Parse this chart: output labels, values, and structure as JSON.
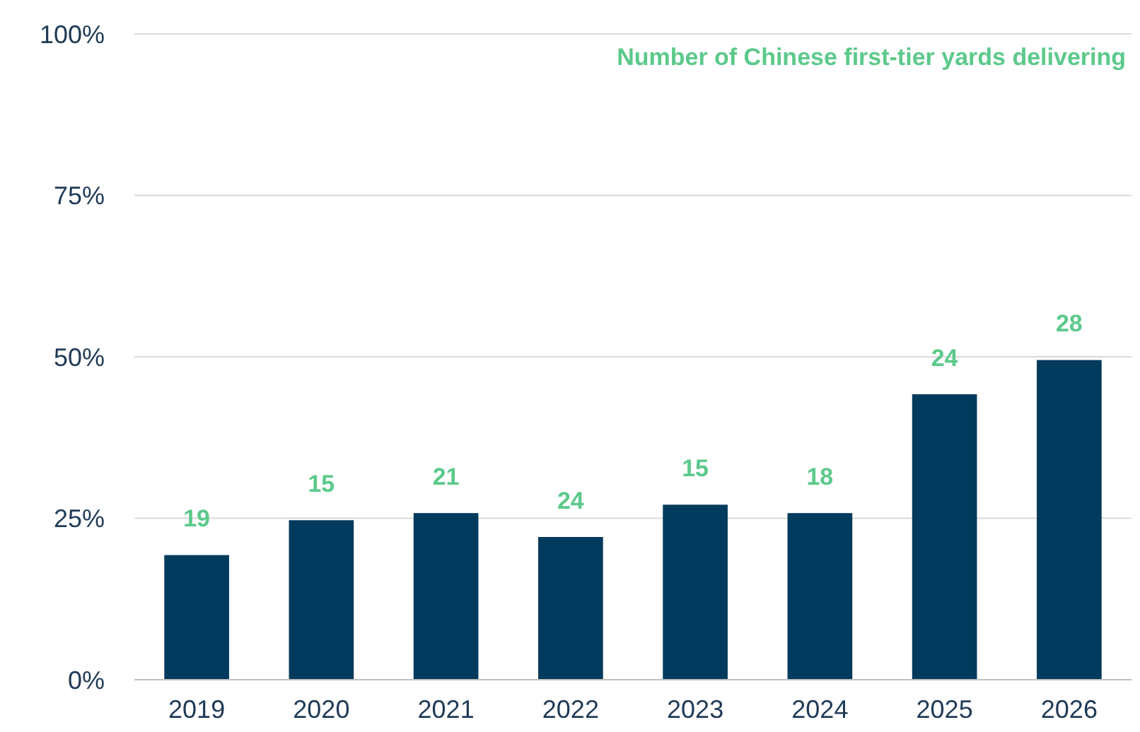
{
  "chart_data": {
    "type": "bar",
    "categories": [
      "2019",
      "2020",
      "2021",
      "2022",
      "2023",
      "2024",
      "2025",
      "2026"
    ],
    "values": [
      19.3,
      24.7,
      25.8,
      22.1,
      27.1,
      25.8,
      44.2,
      49.5
    ],
    "color": "#003a5c",
    "ylim": [
      0,
      100
    ],
    "yticks": [
      {
        "value": 0,
        "label": "0%"
      },
      {
        "value": 25,
        "label": "25%"
      },
      {
        "value": 50,
        "label": "50%"
      },
      {
        "value": 75,
        "label": "75%"
      },
      {
        "value": 100,
        "label": "100%"
      }
    ],
    "grid": "y",
    "annotations": [
      "Number of Chinese first-tier yards delivering",
      {
        "text": "19",
        "x": "2019",
        "y": 19.3
      },
      {
        "text": "15",
        "x": "2020",
        "y": 24.7
      },
      {
        "text": "21",
        "x": "2021",
        "y": 25.8
      },
      {
        "text": "24",
        "x": "2022",
        "y": 22.1
      },
      {
        "text": "15",
        "x": "2023",
        "y": 27.1
      },
      {
        "text": "18",
        "x": "2024",
        "y": 25.8
      },
      {
        "text": "24",
        "x": "2025",
        "y": 44.2
      },
      {
        "text": "28",
        "x": "2026",
        "y": 49.5
      }
    ]
  }
}
